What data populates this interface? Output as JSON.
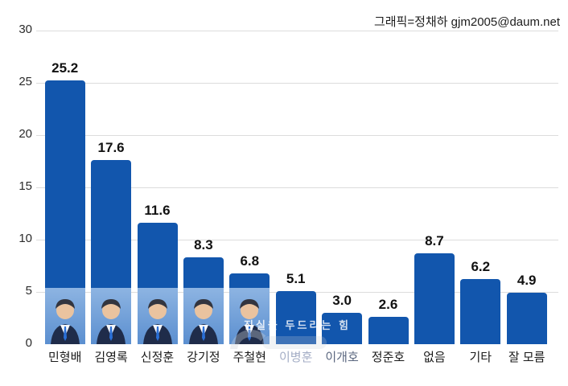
{
  "header": {
    "credit": "그래픽=정채하 gjm2005@daum.net"
  },
  "chart_data": {
    "type": "bar",
    "title": "",
    "xlabel": "",
    "ylabel": "",
    "categories": [
      "민형배",
      "김영록",
      "신정훈",
      "강기정",
      "주철현",
      "이병훈",
      "이개호",
      "정준호",
      "없음",
      "기타",
      "잘 모름"
    ],
    "values": [
      25.2,
      17.6,
      11.6,
      8.3,
      6.8,
      5.1,
      3.0,
      2.6,
      8.7,
      6.2,
      4.9
    ],
    "value_labels": [
      "25.2",
      "17.6",
      "11.6",
      "8.3",
      "6.8",
      "5.1",
      "3.0",
      "2.6",
      "8.7",
      "6.2",
      "4.9"
    ],
    "ylim": [
      0,
      30
    ],
    "yticks": [
      0,
      5,
      10,
      15,
      20,
      25,
      30
    ],
    "grid": "horizontal",
    "legend": "none",
    "bar_color": "#1256ad",
    "gridline_color": "#dcdcdc",
    "photo_bars": [
      0,
      1,
      2,
      3,
      4
    ],
    "faded_label_indices": {
      "5": "#a4aec6",
      "6": "#5c6880"
    }
  },
  "watermark": {
    "slogan": "진실을 두드리는 힘"
  },
  "photo": {
    "bg_top": "#8db4e2",
    "bg_bottom": "#5b8fd0",
    "suit": "#1f2c4a",
    "shirt": "#f5f7fa",
    "tie": "#2a6fd6",
    "skin": "#eac39f",
    "hair": "#33353f"
  }
}
